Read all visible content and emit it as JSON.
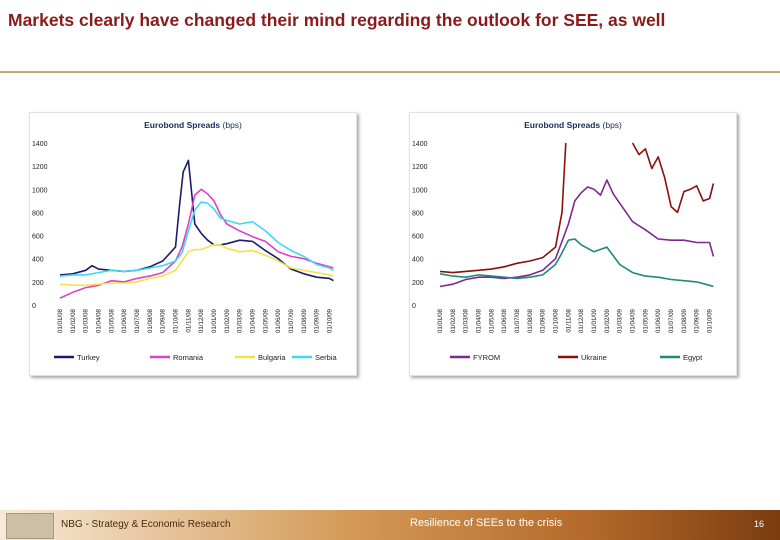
{
  "slide": {
    "title": "Markets clearly have changed their mind regarding the outlook for SEE, as well"
  },
  "footer": {
    "left": "NBG - Strategy & Economic Research",
    "center": "Resilience of SEEs to the crisis",
    "page": "16"
  },
  "colors": {
    "title": "#8B1A1A",
    "rule": "#C9A57A",
    "turkey": "#1c1c6e",
    "romania": "#e040c8",
    "bulgaria": "#f2e24a",
    "serbia": "#3fd8f0",
    "fyrom": "#7b2a8f",
    "ukraine": "#8a1010",
    "egypt": "#1f8a7a"
  },
  "chart_data": [
    {
      "type": "line",
      "title": "Eurobond Spreads",
      "title_unit": "(bps)",
      "ylim": [
        0,
        1400
      ],
      "yticks": [
        "0",
        "200",
        "400",
        "600",
        "800",
        "1000",
        "1200",
        "1400"
      ],
      "x_labels": [
        "01/01/08",
        "01/02/08",
        "01/03/08",
        "01/04/08",
        "01/05/08",
        "01/06/08",
        "01/07/08",
        "01/08/08",
        "01/09/08",
        "01/10/08",
        "01/11/08",
        "01/12/08",
        "01/01/09",
        "01/02/09",
        "01/03/09",
        "01/04/09",
        "01/05/09",
        "01/06/09",
        "01/07/09",
        "01/08/09",
        "01/09/09",
        "01/10/09"
      ],
      "xrange": [
        0,
        21.5
      ],
      "series": [
        {
          "name": "Turkey",
          "color_key": "turkey",
          "x": [
            0,
            1,
            2,
            2.5,
            3,
            4,
            5,
            6,
            7,
            8,
            9,
            9.3,
            9.6,
            10,
            10.5,
            11,
            11.5,
            12,
            12.5,
            13,
            14,
            15,
            16,
            17,
            18,
            19,
            20,
            21,
            21.3
          ],
          "y": [
            260,
            270,
            300,
            340,
            310,
            300,
            290,
            300,
            330,
            380,
            500,
            850,
            1150,
            1250,
            700,
            620,
            560,
            520,
            520,
            530,
            560,
            550,
            470,
            400,
            310,
            270,
            240,
            230,
            210
          ]
        },
        {
          "name": "Romania",
          "color_key": "romania",
          "x": [
            0,
            1,
            2,
            3,
            4,
            5,
            6,
            7,
            8,
            9,
            9.5,
            10,
            10.5,
            11,
            11.5,
            12,
            12.5,
            13,
            14,
            15,
            16,
            17,
            18,
            19,
            20,
            21,
            21.3
          ],
          "y": [
            60,
            110,
            150,
            170,
            210,
            200,
            230,
            250,
            280,
            380,
            500,
            700,
            950,
            1000,
            960,
            900,
            780,
            700,
            640,
            590,
            550,
            460,
            420,
            400,
            360,
            330,
            320
          ]
        },
        {
          "name": "Bulgaria",
          "color_key": "bulgaria",
          "x": [
            0,
            1,
            2,
            3,
            4,
            5,
            6,
            7,
            8,
            9,
            9.5,
            10,
            10.5,
            11,
            11.5,
            12,
            12.5,
            13,
            14,
            15,
            16,
            17,
            18,
            19,
            20,
            21,
            21.3
          ],
          "y": [
            180,
            170,
            170,
            180,
            190,
            190,
            200,
            230,
            250,
            300,
            380,
            460,
            480,
            480,
            500,
            520,
            520,
            490,
            460,
            470,
            430,
            380,
            320,
            300,
            280,
            260,
            250
          ]
        },
        {
          "name": "Serbia",
          "color_key": "serbia",
          "x": [
            0,
            1,
            2,
            3,
            4,
            5,
            6,
            7,
            8,
            9,
            9.5,
            10,
            10.5,
            11,
            11.5,
            12,
            12.5,
            13,
            14,
            15,
            16,
            17,
            18,
            19,
            20,
            21,
            21.3
          ],
          "y": [
            250,
            260,
            260,
            280,
            300,
            290,
            300,
            320,
            340,
            380,
            450,
            640,
            820,
            890,
            880,
            830,
            750,
            730,
            700,
            720,
            640,
            540,
            470,
            420,
            350,
            320,
            300
          ]
        }
      ]
    },
    {
      "type": "line",
      "title": "Eurobond Spreads",
      "title_unit": "(bps)",
      "ylim": [
        0,
        1400
      ],
      "yticks": [
        "0",
        "200",
        "400",
        "600",
        "800",
        "1000",
        "1200",
        "1400"
      ],
      "x_labels": [
        "01/01/08",
        "01/02/08",
        "01/03/08",
        "01/04/08",
        "01/05/08",
        "01/06/08",
        "01/07/08",
        "01/08/08",
        "01/09/08",
        "01/10/08",
        "01/11/08",
        "01/12/08",
        "01/01/09",
        "01/02/09",
        "01/03/09",
        "01/04/09",
        "01/05/09",
        "01/06/09",
        "01/07/09",
        "01/08/09",
        "01/09/09",
        "01/10/09"
      ],
      "xrange": [
        0,
        21.5
      ],
      "series": [
        {
          "name": "FYROM",
          "color_key": "fyrom",
          "x": [
            0,
            1,
            2,
            3,
            4,
            5,
            6,
            7,
            8,
            9,
            9.5,
            10,
            10.5,
            11,
            11.5,
            12,
            12.5,
            13,
            13.5,
            14,
            15,
            16,
            17,
            18,
            19,
            20,
            21,
            21.3
          ],
          "y": [
            160,
            180,
            220,
            240,
            240,
            230,
            240,
            260,
            300,
            400,
            550,
            700,
            900,
            970,
            1020,
            1000,
            950,
            1080,
            960,
            880,
            720,
            650,
            570,
            560,
            560,
            540,
            540,
            420
          ]
        },
        {
          "name": "Ukraine",
          "color_key": "ukraine",
          "x": [
            0,
            1,
            2,
            3,
            4,
            5,
            6,
            7,
            8,
            9,
            9.5,
            9.8,
            10.4,
            11,
            15,
            15.5,
            16,
            16.5,
            17,
            17.5,
            18,
            18.5,
            19,
            19.5,
            20,
            20.5,
            21,
            21.3
          ],
          "y": [
            290,
            280,
            290,
            300,
            310,
            330,
            360,
            380,
            410,
            500,
            800,
            1400,
            null,
            null,
            1400,
            1300,
            1350,
            1180,
            1280,
            1100,
            850,
            800,
            980,
            1000,
            1030,
            900,
            920,
            1050
          ]
        },
        {
          "name": "Egypt",
          "color_key": "egypt",
          "x": [
            0,
            1,
            2,
            3,
            4,
            5,
            6,
            7,
            8,
            9,
            9.5,
            10,
            10.5,
            11,
            12,
            13,
            14,
            15,
            16,
            17,
            18,
            19,
            20,
            21,
            21.3
          ],
          "y": [
            270,
            250,
            240,
            260,
            250,
            240,
            230,
            240,
            260,
            350,
            450,
            560,
            570,
            520,
            460,
            500,
            350,
            280,
            250,
            240,
            220,
            210,
            200,
            170,
            160
          ]
        }
      ]
    }
  ]
}
